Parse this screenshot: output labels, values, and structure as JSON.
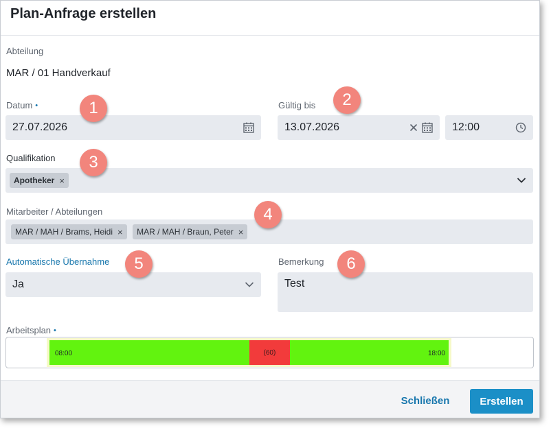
{
  "dialog": {
    "title": "Plan-Anfrage erstellen"
  },
  "abteilung": {
    "label": "Abteilung",
    "value": "MAR / 01 Handverkauf"
  },
  "datum": {
    "label": "Datum",
    "required_marker": "•",
    "value": "27.07.2026"
  },
  "gueltig_bis": {
    "label": "Gültig bis",
    "date_value": "13.07.2026",
    "time_value": "12:00"
  },
  "qualifikation": {
    "label": "Qualifikation",
    "chips": [
      "Apotheker"
    ]
  },
  "mitarbeiter": {
    "label": "Mitarbeiter / Abteilungen",
    "chips": [
      "MAR / MAH / Brams, Heidi",
      "MAR / MAH / Braun, Peter"
    ]
  },
  "automatische_uebernahme": {
    "label": "Automatische Übernahme",
    "value": "Ja"
  },
  "bemerkung": {
    "label": "Bemerkung",
    "value": "Test"
  },
  "arbeitsplan": {
    "label": "Arbeitsplan",
    "required_marker": "•",
    "start": "08:00",
    "end": "18:00",
    "break_label": "(60)",
    "break_start_fraction": 0.5,
    "break_end_fraction": 0.603,
    "colors": {
      "work": "#62f30f",
      "break": "#f23b3b",
      "track": "#f6f9c8"
    }
  },
  "callouts": [
    "1",
    "2",
    "3",
    "4",
    "5",
    "6"
  ],
  "footer": {
    "close_label": "Schließen",
    "create_label": "Erstellen"
  },
  "colors": {
    "accent": "#1877ad",
    "primary_button": "#1b8fc7",
    "field_bg": "#e7eaef",
    "callout": "#f2857c"
  }
}
